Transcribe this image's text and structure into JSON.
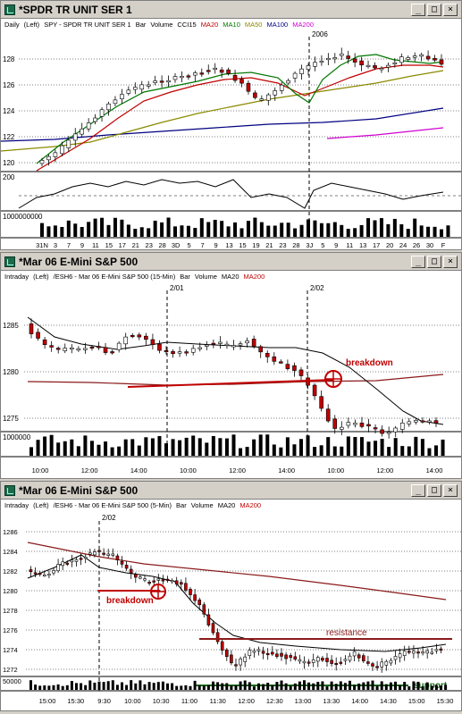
{
  "windows": [
    {
      "title": "*SPDR TR UNIT SER 1",
      "buttons": [
        "_",
        "□",
        "×"
      ],
      "legend": [
        {
          "text": "Daily",
          "color": "#000000"
        },
        {
          "text": "(Left)",
          "color": "#000000"
        },
        {
          "text": "SPY - SPDR TR UNIT SER 1",
          "color": "#000000"
        },
        {
          "text": "Bar",
          "color": "#000000"
        },
        {
          "text": "Volume",
          "color": "#000000"
        },
        {
          "text": "CCI15",
          "color": "#000000"
        },
        {
          "text": "MA20",
          "color": "#c00000"
        },
        {
          "text": "MA10",
          "color": "#007700"
        },
        {
          "text": "MA50",
          "color": "#8a8a00"
        },
        {
          "text": "MA100",
          "color": "#000080"
        },
        {
          "text": "MA200",
          "color": "#d000d0"
        }
      ],
      "year_label": "2006",
      "price_ticks": [
        "128",
        "126",
        "124",
        "122",
        "120"
      ],
      "cci_tick": "200",
      "volume_tick": "1000000000",
      "date_labels": [
        "31N",
        "3",
        "7",
        "9",
        "11",
        "15",
        "17",
        "21",
        "23",
        "28",
        "3D",
        "5",
        "7",
        "9",
        "13",
        "15",
        "19",
        "21",
        "23",
        "28",
        "3J",
        "5",
        "9",
        "11",
        "13",
        "17",
        "20",
        "24",
        "26",
        "30",
        "F"
      ]
    },
    {
      "title": "*Mar 06  E-Mini S&P 500",
      "buttons": [
        "_",
        "□",
        "×"
      ],
      "legend": [
        {
          "text": "Intraday",
          "color": "#000000"
        },
        {
          "text": "(Left)",
          "color": "#000000"
        },
        {
          "text": "/ESH6 - Mar 06  E-Mini S&P 500 (15-Min)",
          "color": "#000000"
        },
        {
          "text": "Bar",
          "color": "#000000"
        },
        {
          "text": "Volume",
          "color": "#000000"
        },
        {
          "text": "MA20",
          "color": "#000000"
        },
        {
          "text": "MA200",
          "color": "#c00000"
        }
      ],
      "date_markers": [
        "2/01",
        "2/02"
      ],
      "price_ticks": [
        "1285",
        "1280",
        "1275"
      ],
      "volume_tick": "1000000",
      "time_labels": [
        "10:00",
        "12:00",
        "14:00",
        "10:00",
        "12:00",
        "14:00",
        "10:00",
        "12:00",
        "14:00"
      ],
      "annotation": "breakdown"
    },
    {
      "title": "*Mar 06  E-Mini S&P 500",
      "buttons": [
        "_",
        "□",
        "×"
      ],
      "legend": [
        {
          "text": "Intraday",
          "color": "#000000"
        },
        {
          "text": "(Left)",
          "color": "#000000"
        },
        {
          "text": "/ESH6 - Mar 06  E-Mini S&P 500 (5-Min)",
          "color": "#000000"
        },
        {
          "text": "Bar",
          "color": "#000000"
        },
        {
          "text": "Volume",
          "color": "#000000"
        },
        {
          "text": "MA20",
          "color": "#000000"
        },
        {
          "text": "MA200",
          "color": "#c00000"
        }
      ],
      "date_marker": "2/02",
      "price_ticks": [
        "1286",
        "1284",
        "1282",
        "1280",
        "1278",
        "1276",
        "1274",
        "1272"
      ],
      "volume_tick": "50000",
      "time_labels": [
        "15:00",
        "15:30",
        "9:30",
        "10:00",
        "10:30",
        "11:00",
        "11:30",
        "12:00",
        "12:30",
        "13:00",
        "13:30",
        "14:00",
        "14:30",
        "15:00",
        "15:30"
      ],
      "annotations": {
        "breakdown": "breakdown",
        "resistance": "resistance",
        "support": "support"
      }
    }
  ],
  "colors": {
    "bull": "#ffffff",
    "bear": "#c00000",
    "annotation": "#c00000",
    "support": "#007700"
  }
}
